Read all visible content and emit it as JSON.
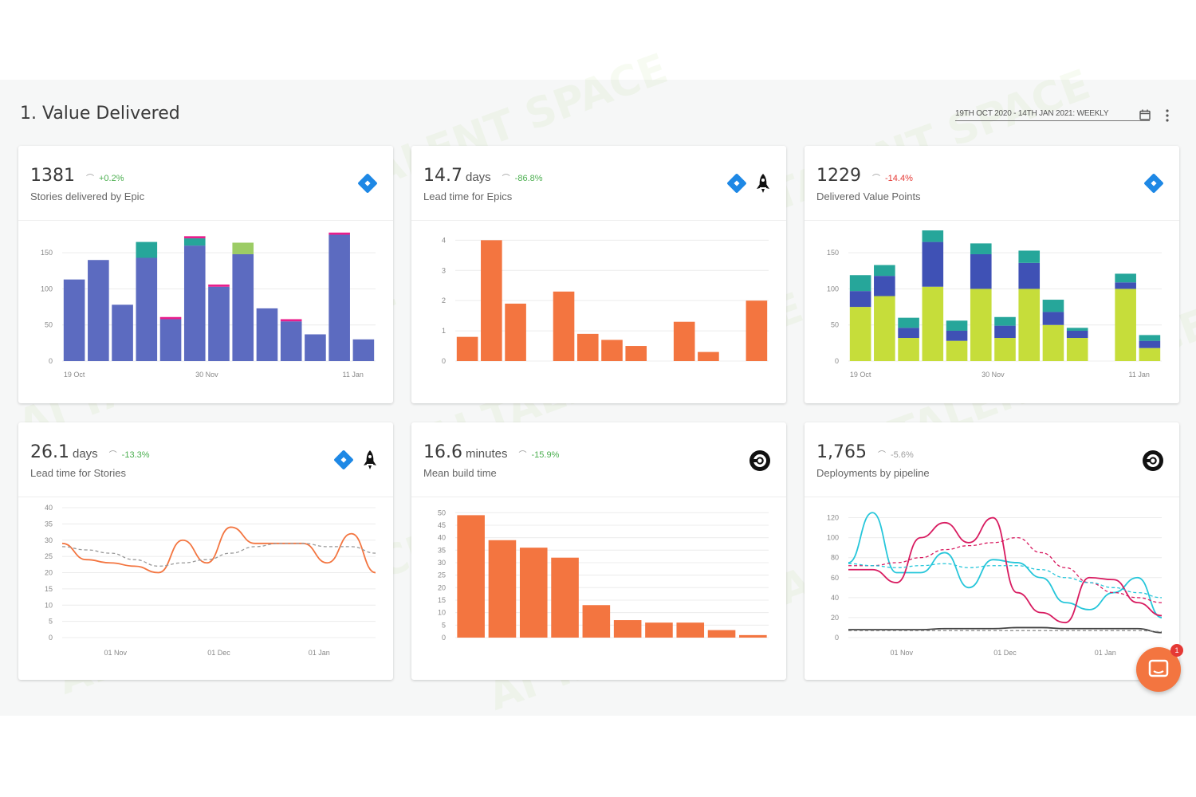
{
  "section": {
    "title": "1. Value Delivered"
  },
  "toolbar": {
    "date_range": "19TH OCT 2020 - 14TH JAN 2021: WEEKLY"
  },
  "colors": {
    "accent": "#f37540",
    "bar_blue": "#5c6bc0",
    "bar_teal": "#26a69a",
    "bar_green": "#c6dd3a",
    "bar_magenta": "#e91e8c",
    "bar_lime": "#9ccc65",
    "positive": "#4caf50",
    "negative": "#e53935"
  },
  "chat": {
    "badge": "1"
  },
  "cards": [
    {
      "value": "1381",
      "unit": "",
      "change": "+0.2%",
      "label": "Stories delivered by Epic",
      "icons": [
        "jira-icon"
      ]
    },
    {
      "value": "14.7",
      "unit": "days",
      "change": "-86.8%",
      "label": "Lead time for Epics",
      "icons": [
        "jira-icon",
        "rocket-icon"
      ]
    },
    {
      "value": "1229",
      "unit": "",
      "change": "-14.4%",
      "label": "Delivered Value Points",
      "icons": [
        "jira-icon"
      ]
    },
    {
      "value": "26.1",
      "unit": "days",
      "change": "-13.3%",
      "label": "Lead time for Stories",
      "icons": [
        "jira-icon",
        "rocket-icon"
      ]
    },
    {
      "value": "16.6",
      "unit": "minutes",
      "change": "-15.9%",
      "label": "Mean build time",
      "icons": [
        "circleci-icon"
      ]
    },
    {
      "value": "1,765",
      "unit": "",
      "change": "-5.6%",
      "label": "Deployments by pipeline",
      "icons": [
        "circleci-icon"
      ]
    }
  ],
  "chart_data": [
    {
      "type": "bar",
      "stacked": true,
      "ylim": [
        0,
        180
      ],
      "yticks": [
        0,
        50,
        100,
        150
      ],
      "xtick_labels": [
        "19 Oct",
        "30 Nov",
        "11 Jan"
      ],
      "series": [
        {
          "values": [
            113,
            140,
            78,
            143,
            58,
            160,
            103,
            148,
            73,
            55,
            37,
            175,
            30
          ]
        },
        {
          "values": [
            0,
            0,
            0,
            22,
            0,
            10,
            0,
            0,
            0,
            0,
            0,
            0,
            0
          ]
        },
        {
          "values": [
            0,
            0,
            0,
            0,
            3,
            0,
            3,
            0,
            0,
            3,
            0,
            0,
            0
          ]
        },
        {
          "values": [
            0,
            0,
            0,
            0,
            0,
            0,
            0,
            16,
            0,
            0,
            0,
            0,
            0
          ]
        },
        {
          "values": [
            0,
            0,
            0,
            0,
            0,
            3,
            0,
            0,
            0,
            0,
            0,
            3,
            0
          ]
        }
      ]
    },
    {
      "type": "bar",
      "ylim": [
        0,
        4.3
      ],
      "yticks": [
        0,
        1,
        2,
        3,
        4
      ],
      "values": [
        0.8,
        4,
        1.9,
        0,
        2.3,
        0.9,
        0.7,
        0.5,
        0,
        1.3,
        0.3,
        0,
        2
      ],
      "xtick_labels": []
    },
    {
      "type": "bar",
      "stacked": true,
      "ylim": [
        0,
        180
      ],
      "yticks": [
        0,
        50,
        100,
        150
      ],
      "xtick_labels": [
        "19 Oct",
        "30 Nov",
        "11 Jan"
      ],
      "series": [
        {
          "values": [
            75,
            90,
            32,
            103,
            28,
            100,
            32,
            100,
            50,
            32,
            0,
            100,
            18
          ]
        },
        {
          "values": [
            22,
            28,
            14,
            62,
            14,
            48,
            17,
            36,
            18,
            10,
            0,
            9,
            10
          ]
        },
        {
          "values": [
            22,
            15,
            14,
            16,
            14,
            15,
            12,
            17,
            17,
            4,
            0,
            12,
            8
          ]
        }
      ]
    },
    {
      "type": "line",
      "ylim": [
        0,
        40
      ],
      "yticks": [
        0,
        5,
        10,
        15,
        20,
        25,
        30,
        35,
        40
      ],
      "xtick_labels": [
        "01 Nov",
        "01 Dec",
        "01 Jan"
      ],
      "series": [
        {
          "values": [
            29,
            24,
            23,
            22,
            20,
            30,
            23,
            34,
            29,
            29,
            29,
            23,
            32,
            20
          ],
          "dashed": false
        },
        {
          "values": [
            28,
            27,
            26,
            24,
            22,
            23,
            24,
            26,
            28,
            29,
            29,
            28,
            28,
            26
          ],
          "dashed": true
        }
      ]
    },
    {
      "type": "bar",
      "ylim": [
        0,
        52
      ],
      "yticks": [
        0,
        5,
        10,
        15,
        20,
        25,
        30,
        35,
        40,
        45,
        50
      ],
      "values": [
        49,
        39,
        36,
        32,
        13,
        7,
        6,
        6,
        3,
        1
      ],
      "xtick_labels": []
    },
    {
      "type": "line",
      "ylim": [
        0,
        130
      ],
      "yticks": [
        0,
        20,
        40,
        60,
        80,
        100,
        120
      ],
      "xtick_labels": [
        "01 Nov",
        "01 Dec",
        "01 Jan"
      ],
      "series": [
        {
          "values": [
            75,
            125,
            65,
            65,
            85,
            50,
            78,
            75,
            60,
            35,
            28,
            45,
            60,
            20
          ],
          "dashed": false
        },
        {
          "values": [
            68,
            68,
            55,
            100,
            115,
            95,
            120,
            45,
            25,
            15,
            60,
            58,
            35,
            22
          ],
          "dashed": false
        },
        {
          "values": [
            72,
            72,
            75,
            80,
            88,
            92,
            95,
            100,
            85,
            70,
            55,
            45,
            40,
            35
          ],
          "dashed": true
        },
        {
          "values": [
            74,
            72,
            70,
            72,
            74,
            70,
            72,
            72,
            68,
            60,
            55,
            50,
            45,
            40
          ],
          "dashed": true
        },
        {
          "values": [
            8,
            8,
            8,
            8,
            9,
            9,
            9,
            10,
            10,
            9,
            9,
            9,
            9,
            5
          ],
          "dashed": false
        },
        {
          "values": [
            7,
            7,
            7,
            7,
            7,
            7,
            7,
            7,
            7,
            7,
            7,
            7,
            7,
            6
          ],
          "dashed": true
        }
      ]
    }
  ]
}
